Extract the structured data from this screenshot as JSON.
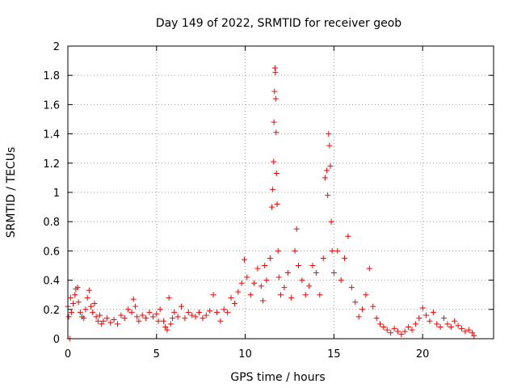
{
  "chart_data": {
    "type": "scatter",
    "title": "Day 149 of 2022, SRMTID for receiver geob",
    "xlabel": "GPS time / hours",
    "ylabel": "SRMTID / TECUs",
    "xlim": [
      0,
      24
    ],
    "ylim": [
      0,
      2
    ],
    "x_ticks": [
      0,
      5,
      10,
      15,
      20
    ],
    "x_tick_labels": [
      "0",
      "5",
      "10",
      "15",
      "20"
    ],
    "y_ticks": [
      0,
      0.2,
      0.4,
      0.6,
      0.8,
      1,
      1.2,
      1.4,
      1.6,
      1.8,
      2
    ],
    "y_tick_labels": [
      "0",
      "0.2",
      "0.4",
      "0.6",
      "0.8",
      "1",
      "1.2",
      "1.4",
      "1.6",
      "1.8",
      "2"
    ],
    "grid": true,
    "marker": "plus",
    "color": "#ff0000",
    "series": [
      {
        "name": "SRMTID",
        "points": [
          [
            0.0,
            0.22
          ],
          [
            0.05,
            0.15
          ],
          [
            0.1,
            0.0
          ],
          [
            0.15,
            0.28
          ],
          [
            0.2,
            0.18
          ],
          [
            0.3,
            0.24
          ],
          [
            0.4,
            0.3
          ],
          [
            0.45,
            0.34
          ],
          [
            0.55,
            0.35
          ],
          [
            0.6,
            0.25
          ],
          [
            0.7,
            0.18
          ],
          [
            0.8,
            0.15
          ],
          [
            0.9,
            0.14
          ],
          [
            1.0,
            0.2
          ],
          [
            1.1,
            0.28
          ],
          [
            1.2,
            0.33
          ],
          [
            1.3,
            0.22
          ],
          [
            1.4,
            0.18
          ],
          [
            1.5,
            0.24
          ],
          [
            1.6,
            0.15
          ],
          [
            1.7,
            0.12
          ],
          [
            1.8,
            0.16
          ],
          [
            1.9,
            0.1
          ],
          [
            2.0,
            0.12
          ],
          [
            2.2,
            0.14
          ],
          [
            2.4,
            0.11
          ],
          [
            2.6,
            0.13
          ],
          [
            2.8,
            0.1
          ],
          [
            3.0,
            0.16
          ],
          [
            3.2,
            0.14
          ],
          [
            3.4,
            0.2
          ],
          [
            3.6,
            0.18
          ],
          [
            3.7,
            0.27
          ],
          [
            3.8,
            0.22
          ],
          [
            3.9,
            0.15
          ],
          [
            4.0,
            0.12
          ],
          [
            4.2,
            0.16
          ],
          [
            4.4,
            0.14
          ],
          [
            4.6,
            0.18
          ],
          [
            4.8,
            0.15
          ],
          [
            5.0,
            0.17
          ],
          [
            5.1,
            0.12
          ],
          [
            5.2,
            0.2
          ],
          [
            5.4,
            0.12
          ],
          [
            5.5,
            0.08
          ],
          [
            5.6,
            0.06
          ],
          [
            5.7,
            0.28
          ],
          [
            5.8,
            0.1
          ],
          [
            5.9,
            0.14
          ],
          [
            6.0,
            0.18
          ],
          [
            6.2,
            0.15
          ],
          [
            6.4,
            0.22
          ],
          [
            6.6,
            0.14
          ],
          [
            6.8,
            0.18
          ],
          [
            7.0,
            0.16
          ],
          [
            7.2,
            0.15
          ],
          [
            7.4,
            0.18
          ],
          [
            7.6,
            0.14
          ],
          [
            7.8,
            0.16
          ],
          [
            8.0,
            0.19
          ],
          [
            8.2,
            0.3
          ],
          [
            8.4,
            0.18
          ],
          [
            8.6,
            0.12
          ],
          [
            8.8,
            0.2
          ],
          [
            9.0,
            0.18
          ],
          [
            9.2,
            0.28
          ],
          [
            9.4,
            0.24
          ],
          [
            9.6,
            0.32
          ],
          [
            9.8,
            0.38
          ],
          [
            9.95,
            0.54
          ],
          [
            10.1,
            0.42
          ],
          [
            10.3,
            0.3
          ],
          [
            10.5,
            0.38
          ],
          [
            10.7,
            0.48
          ],
          [
            10.9,
            0.36
          ],
          [
            11.0,
            0.26
          ],
          [
            11.1,
            0.5
          ],
          [
            11.2,
            0.4
          ],
          [
            11.4,
            0.55
          ],
          [
            11.5,
            0.9
          ],
          [
            11.55,
            1.02
          ],
          [
            11.6,
            1.21
          ],
          [
            11.62,
            1.48
          ],
          [
            11.65,
            1.69
          ],
          [
            11.68,
            1.85
          ],
          [
            11.7,
            1.82
          ],
          [
            11.72,
            1.64
          ],
          [
            11.74,
            1.41
          ],
          [
            11.76,
            1.13
          ],
          [
            11.8,
            0.92
          ],
          [
            11.85,
            0.6
          ],
          [
            11.9,
            0.42
          ],
          [
            12.0,
            0.3
          ],
          [
            12.2,
            0.35
          ],
          [
            12.4,
            0.45
          ],
          [
            12.6,
            0.28
          ],
          [
            12.8,
            0.6
          ],
          [
            12.9,
            0.75
          ],
          [
            13.0,
            0.5
          ],
          [
            13.2,
            0.4
          ],
          [
            13.4,
            0.3
          ],
          [
            13.6,
            0.36
          ],
          [
            13.8,
            0.5
          ],
          [
            14.0,
            0.45
          ],
          [
            14.2,
            0.3
          ],
          [
            14.4,
            0.55
          ],
          [
            14.5,
            1.1
          ],
          [
            14.6,
            1.15
          ],
          [
            14.65,
            0.98
          ],
          [
            14.7,
            1.4
          ],
          [
            14.75,
            1.32
          ],
          [
            14.8,
            1.18
          ],
          [
            14.85,
            0.8
          ],
          [
            14.9,
            0.6
          ],
          [
            15.0,
            0.45
          ],
          [
            15.2,
            0.6
          ],
          [
            15.4,
            0.4
          ],
          [
            15.6,
            0.55
          ],
          [
            15.8,
            0.7
          ],
          [
            16.0,
            0.35
          ],
          [
            16.2,
            0.25
          ],
          [
            16.4,
            0.15
          ],
          [
            16.6,
            0.2
          ],
          [
            16.8,
            0.3
          ],
          [
            17.0,
            0.48
          ],
          [
            17.2,
            0.22
          ],
          [
            17.4,
            0.14
          ],
          [
            17.6,
            0.1
          ],
          [
            17.8,
            0.08
          ],
          [
            18.0,
            0.06
          ],
          [
            18.2,
            0.04
          ],
          [
            18.4,
            0.07
          ],
          [
            18.6,
            0.05
          ],
          [
            18.8,
            0.03
          ],
          [
            19.0,
            0.05
          ],
          [
            19.2,
            0.08
          ],
          [
            19.4,
            0.06
          ],
          [
            19.6,
            0.1
          ],
          [
            19.8,
            0.14
          ],
          [
            20.0,
            0.21
          ],
          [
            20.2,
            0.16
          ],
          [
            20.4,
            0.12
          ],
          [
            20.6,
            0.18
          ],
          [
            20.8,
            0.1
          ],
          [
            21.0,
            0.08
          ],
          [
            21.2,
            0.14
          ],
          [
            21.4,
            0.1
          ],
          [
            21.6,
            0.08
          ],
          [
            21.8,
            0.12
          ],
          [
            22.0,
            0.09
          ],
          [
            22.2,
            0.07
          ],
          [
            22.4,
            0.05
          ],
          [
            22.6,
            0.06
          ],
          [
            22.8,
            0.04
          ],
          [
            22.9,
            0.02
          ]
        ]
      }
    ]
  }
}
